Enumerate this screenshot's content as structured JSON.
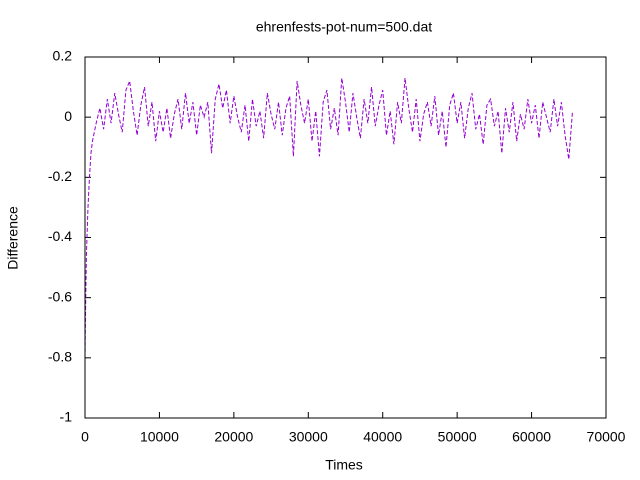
{
  "chart_data": {
    "type": "line",
    "title": "ehrenfests-pot-num=500.dat",
    "x_label": "Times",
    "y_label": "Difference",
    "xlim": [
      0,
      70000
    ],
    "ylim": [
      -1,
      0.2
    ],
    "xticks": [
      0,
      10000,
      20000,
      30000,
      40000,
      50000,
      60000,
      70000
    ],
    "yticks": [
      -1,
      -0.8,
      -0.6,
      -0.4,
      -0.2,
      0,
      0.2
    ],
    "grid": false,
    "series": [
      {
        "color": "#9400d3",
        "x": [
          0,
          100,
          200,
          400,
          600,
          800,
          1000,
          1500,
          2000,
          2500,
          3000,
          3500,
          4000,
          4500,
          5000,
          5500,
          6000,
          6500,
          7000,
          7500,
          8000,
          8500,
          9000,
          9500,
          10000,
          10500,
          11000,
          11500,
          12000,
          12500,
          13000,
          13500,
          14000,
          14500,
          15000,
          15500,
          16000,
          16500,
          17000,
          17500,
          18000,
          18500,
          19000,
          19500,
          20000,
          20500,
          21000,
          21500,
          22000,
          22500,
          23000,
          23500,
          24000,
          24500,
          25000,
          25500,
          26000,
          26500,
          27000,
          27500,
          28000,
          28500,
          29000,
          29500,
          30000,
          30500,
          31000,
          31500,
          32000,
          32500,
          33000,
          33500,
          34000,
          34500,
          35000,
          35500,
          36000,
          36500,
          37000,
          37500,
          38000,
          38500,
          39000,
          39500,
          40000,
          40500,
          41000,
          41500,
          42000,
          42500,
          43000,
          43500,
          44000,
          44500,
          45000,
          45500,
          46000,
          46500,
          47000,
          47500,
          48000,
          48500,
          49000,
          49500,
          50000,
          50500,
          51000,
          51500,
          52000,
          52500,
          53000,
          53500,
          54000,
          54500,
          55000,
          55500,
          56000,
          56500,
          57000,
          57500,
          58000,
          58500,
          59000,
          59500,
          60000,
          60500,
          61000,
          61500,
          62000,
          62500,
          63000,
          63500,
          64000,
          64500,
          65000,
          65500
        ],
        "values": [
          -0.8,
          -0.6,
          -0.45,
          -0.3,
          -0.2,
          -0.12,
          -0.08,
          -0.02,
          0.03,
          -0.04,
          0.06,
          -0.02,
          0.08,
          0.01,
          -0.05,
          0.09,
          0.12,
          0.02,
          -0.06,
          0.04,
          0.1,
          -0.03,
          0.05,
          -0.08,
          0.02,
          -0.05,
          0.03,
          -0.07,
          0.01,
          0.06,
          -0.04,
          0.08,
          -0.02,
          0.05,
          -0.06,
          0.04,
          0.0,
          0.05,
          -0.12,
          0.06,
          0.11,
          0.03,
          0.09,
          -0.02,
          0.07,
          0.0,
          -0.05,
          0.04,
          -0.08,
          0.06,
          -0.03,
          0.02,
          -0.07,
          0.08,
          0.01,
          -0.04,
          0.05,
          -0.06,
          0.03,
          0.07,
          -0.13,
          0.12,
          0.04,
          -0.02,
          0.06,
          -0.08,
          0.02,
          -0.13,
          0.05,
          0.09,
          -0.04,
          0.03,
          -0.06,
          0.13,
          0.05,
          -0.05,
          0.08,
          0.0,
          -0.07,
          0.06,
          -0.02,
          0.1,
          -0.03,
          0.04,
          0.09,
          -0.06,
          0.02,
          -0.09,
          0.05,
          -0.02,
          0.13,
          0.03,
          -0.05,
          0.06,
          -0.08,
          0.01,
          0.05,
          -0.03,
          0.07,
          -0.06,
          0.02,
          -0.1,
          0.04,
          0.08,
          -0.02,
          0.05,
          -0.07,
          0.03,
          0.08,
          -0.04,
          0.01,
          -0.09,
          0.04,
          0.06,
          -0.03,
          0.02,
          -0.12,
          0.03,
          -0.05,
          0.05,
          -0.08,
          0.01,
          -0.04,
          0.06,
          -0.02,
          0.04,
          -0.07,
          0.05,
          0.0,
          -0.05,
          0.06,
          -0.03,
          0.05,
          -0.06,
          -0.14,
          0.02
        ]
      }
    ]
  }
}
